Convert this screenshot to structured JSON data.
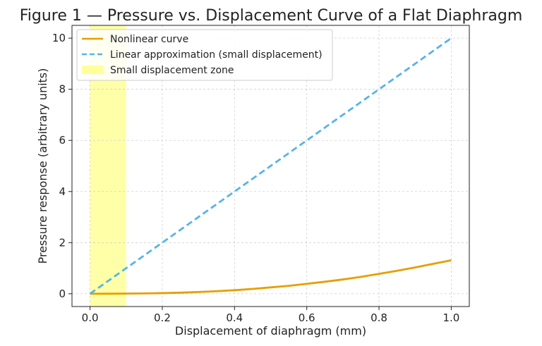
{
  "chart_data": {
    "type": "line",
    "title": "Figure 1 — Pressure vs. Displacement Curve of a Flat Diaphragm",
    "xlabel": "Displacement of diaphragm (mm)",
    "ylabel": "Pressure response (arbitrary units)",
    "xlim": [
      -0.05,
      1.05
    ],
    "ylim": [
      -0.5,
      10.5
    ],
    "xticks": [
      0.0,
      0.2,
      0.4,
      0.6,
      0.8,
      1.0
    ],
    "xtick_labels": [
      "0.0",
      "0.2",
      "0.4",
      "0.6",
      "0.8",
      "1.0"
    ],
    "yticks": [
      0,
      2,
      4,
      6,
      8,
      10
    ],
    "ytick_labels": [
      "0",
      "2",
      "4",
      "6",
      "8",
      "10"
    ],
    "grid": true,
    "legend_position": "top-left",
    "shaded_region": {
      "name": "Small displacement zone",
      "x_range": [
        0.0,
        0.1
      ],
      "color": "#ffff99"
    },
    "series": [
      {
        "name": "Nonlinear curve",
        "style": "solid",
        "color": "#e69f00",
        "x": [
          0.0,
          0.05,
          0.1,
          0.15,
          0.2,
          0.25,
          0.3,
          0.35,
          0.4,
          0.45,
          0.5,
          0.55,
          0.6,
          0.65,
          0.7,
          0.75,
          0.8,
          0.85,
          0.9,
          0.95,
          1.0
        ],
        "y": [
          0.0,
          0.0015,
          0.006,
          0.0135,
          0.025,
          0.043,
          0.068,
          0.1,
          0.14,
          0.19,
          0.25,
          0.31,
          0.39,
          0.47,
          0.56,
          0.66,
          0.78,
          0.9,
          1.03,
          1.17,
          1.31
        ]
      },
      {
        "name": "Linear approximation (small displacement)",
        "style": "dashed",
        "color": "#56b4e9",
        "x": [
          0.0,
          1.0
        ],
        "y": [
          0.0,
          10.0
        ]
      }
    ]
  }
}
